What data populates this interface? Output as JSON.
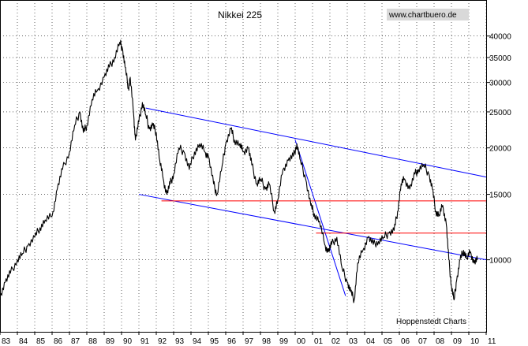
{
  "chart_data": {
    "type": "line",
    "title": "Nikkei 225",
    "source_label": "www.chartbuero.de",
    "credit": "Hoppenstedt Charts",
    "y_scale": "log",
    "ylim": [
      6400,
      50000
    ],
    "xlim": [
      1983.0,
      2011.0
    ],
    "y_ticks": [
      10000,
      15000,
      20000,
      25000,
      30000,
      35000,
      40000
    ],
    "y_tick_labels": [
      "10000",
      "15000",
      "20000",
      "25000",
      "30000",
      "35000",
      "40000"
    ],
    "x_ticks": [
      1983,
      1984,
      1985,
      1986,
      1987,
      1988,
      1989,
      1990,
      1991,
      1992,
      1993,
      1994,
      1995,
      1996,
      1997,
      1998,
      1999,
      2000,
      2001,
      2002,
      2003,
      2004,
      2005,
      2006,
      2007,
      2008,
      2009,
      2010,
      2011
    ],
    "x_tick_labels": [
      "83",
      "84",
      "85",
      "86",
      "87",
      "88",
      "89",
      "90",
      "91",
      "92",
      "93",
      "94",
      "95",
      "96",
      "97",
      "98",
      "99",
      "00",
      "01",
      "02",
      "03",
      "04",
      "05",
      "06",
      "07",
      "08",
      "09",
      "10",
      "11"
    ],
    "grid": true,
    "series": [
      {
        "color": "#000000",
        "x": [
          1983.0,
          1983.3,
          1983.6,
          1984.0,
          1984.3,
          1984.6,
          1985.0,
          1985.3,
          1985.6,
          1986.0,
          1986.3,
          1986.6,
          1987.0,
          1987.3,
          1987.6,
          1987.8,
          1988.0,
          1988.3,
          1988.6,
          1989.0,
          1989.3,
          1989.6,
          1989.9,
          1990.05,
          1990.2,
          1990.4,
          1990.5,
          1990.7,
          1990.8,
          1991.0,
          1991.2,
          1991.4,
          1991.6,
          1991.8,
          1992.0,
          1992.2,
          1992.4,
          1992.6,
          1992.8,
          1993.0,
          1993.3,
          1993.6,
          1993.9,
          1994.2,
          1994.5,
          1994.8,
          1995.0,
          1995.3,
          1995.5,
          1995.8,
          1996.0,
          1996.3,
          1996.5,
          1996.8,
          1997.0,
          1997.3,
          1997.5,
          1997.8,
          1998.0,
          1998.3,
          1998.5,
          1998.8,
          1999.0,
          1999.3,
          1999.6,
          1999.9,
          2000.1,
          2000.3,
          2000.6,
          2000.9,
          2001.1,
          2001.4,
          2001.7,
          2001.9,
          2002.1,
          2002.4,
          2002.7,
          2003.0,
          2003.2,
          2003.4,
          2003.6,
          2003.9,
          2004.2,
          2004.5,
          2004.8,
          2005.1,
          2005.4,
          2005.7,
          2005.9,
          2006.1,
          2006.3,
          2006.6,
          2006.9,
          2007.1,
          2007.4,
          2007.7,
          2007.9,
          2008.1,
          2008.3,
          2008.5,
          2008.7,
          2008.85,
          2009.0,
          2009.15,
          2009.3,
          2009.5,
          2009.7,
          2009.9,
          2010.1,
          2010.3,
          2010.5
        ],
        "y": [
          8000,
          8700,
          9200,
          10000,
          10400,
          10900,
          11500,
          12200,
          12800,
          13100,
          15500,
          17500,
          19500,
          23000,
          25000,
          22000,
          23000,
          27000,
          28500,
          31000,
          33000,
          35000,
          38500,
          37000,
          33000,
          29000,
          31000,
          24500,
          21000,
          23500,
          26500,
          24500,
          22500,
          23000,
          22000,
          18500,
          16500,
          15000,
          16000,
          17000,
          20000,
          19500,
          17500,
          19500,
          20500,
          19500,
          19000,
          16000,
          15000,
          18000,
          20500,
          22500,
          21000,
          20500,
          19500,
          20000,
          18000,
          16000,
          16500,
          15500,
          16000,
          13500,
          14500,
          17500,
          18500,
          19000,
          20500,
          18500,
          16500,
          14000,
          13300,
          12700,
          11000,
          10500,
          11000,
          11500,
          9500,
          8700,
          8200,
          7800,
          9800,
          10600,
          11500,
          11000,
          11200,
          11500,
          11800,
          12000,
          13500,
          16000,
          16500,
          15500,
          17000,
          17500,
          18000,
          17000,
          15500,
          13500,
          13200,
          14000,
          12500,
          10000,
          8500,
          7800,
          8800,
          10000,
          10600,
          10100,
          10500,
          9800,
          10000
        ]
      }
    ],
    "trendlines": [
      {
        "color": "#0000ff",
        "x": [
          1991.4,
          2011.0
        ],
        "y": [
          25600,
          16700
        ]
      },
      {
        "color": "#0000ff",
        "x": [
          1991.0,
          2011.0
        ],
        "y": [
          15000,
          10000
        ]
      },
      {
        "color": "#0000ff",
        "x": [
          2000.0,
          2002.9
        ],
        "y": [
          21000,
          8000
        ]
      },
      {
        "color": "#ff0000",
        "x": [
          1992.3,
          2011.0
        ],
        "y": [
          14400,
          14400
        ]
      },
      {
        "color": "#ff0000",
        "x": [
          2001.2,
          2011.0
        ],
        "y": [
          11800,
          11800
        ]
      }
    ]
  }
}
